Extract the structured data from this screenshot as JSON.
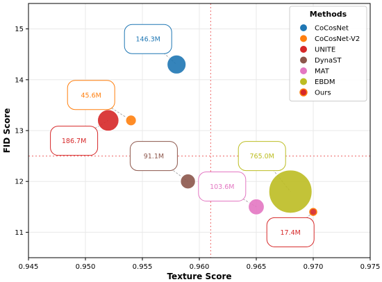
{
  "chart_data": {
    "type": "scatter",
    "title": "",
    "xlabel": "Texture Score",
    "ylabel": "FID Score",
    "xlim": [
      0.945,
      0.975
    ],
    "ylim": [
      10.5,
      15.5
    ],
    "xticks": [
      0.945,
      0.95,
      0.955,
      0.96,
      0.965,
      0.97,
      0.975
    ],
    "xtick_labels": [
      "0.945",
      "0.950",
      "0.955",
      "0.960",
      "0.965",
      "0.970",
      "0.975"
    ],
    "yticks": [
      11,
      12,
      13,
      14,
      15
    ],
    "ytick_labels": [
      "11",
      "12",
      "13",
      "14",
      "15"
    ],
    "grid": true,
    "reference_lines": {
      "x": 0.961,
      "y": 12.5,
      "style": "dotted",
      "color": "#f08080"
    },
    "legend": {
      "title": "Methods",
      "position": "top-right"
    },
    "series": [
      {
        "name": "CoCosNet",
        "x": 0.958,
        "y": 14.3,
        "params": 146.3,
        "label": "146.3M",
        "color": "#1f77b4",
        "label_pos": {
          "x": 0.9555,
          "y": 14.8
        }
      },
      {
        "name": "CoCosNet-V2",
        "x": 0.954,
        "y": 13.2,
        "params": 45.6,
        "label": "45.6M",
        "color": "#ff7f0e",
        "label_pos": {
          "x": 0.9505,
          "y": 13.7
        }
      },
      {
        "name": "UNITE",
        "x": 0.952,
        "y": 13.2,
        "params": 186.7,
        "label": "186.7M",
        "color": "#d62728",
        "label_pos": {
          "x": 0.949,
          "y": 12.8
        }
      },
      {
        "name": "DynaST",
        "x": 0.959,
        "y": 12.0,
        "params": 91.1,
        "label": "91.1M",
        "color": "#8c564b",
        "label_pos": {
          "x": 0.956,
          "y": 12.5
        }
      },
      {
        "name": "MAT",
        "x": 0.965,
        "y": 11.5,
        "params": 103.6,
        "label": "103.6M",
        "color": "#e377c2",
        "label_pos": {
          "x": 0.962,
          "y": 11.9
        }
      },
      {
        "name": "EBDM",
        "x": 0.968,
        "y": 11.8,
        "params": 765.0,
        "label": "765.0M",
        "color": "#bcbd22",
        "label_pos": {
          "x": 0.9655,
          "y": 12.5
        }
      },
      {
        "name": "Ours",
        "x": 0.97,
        "y": 11.4,
        "params": 17.4,
        "label": "17.4M",
        "color": "#d62728",
        "edge_color": "#ff7f0e",
        "label_pos": {
          "x": 0.968,
          "y": 11.0
        }
      }
    ]
  }
}
